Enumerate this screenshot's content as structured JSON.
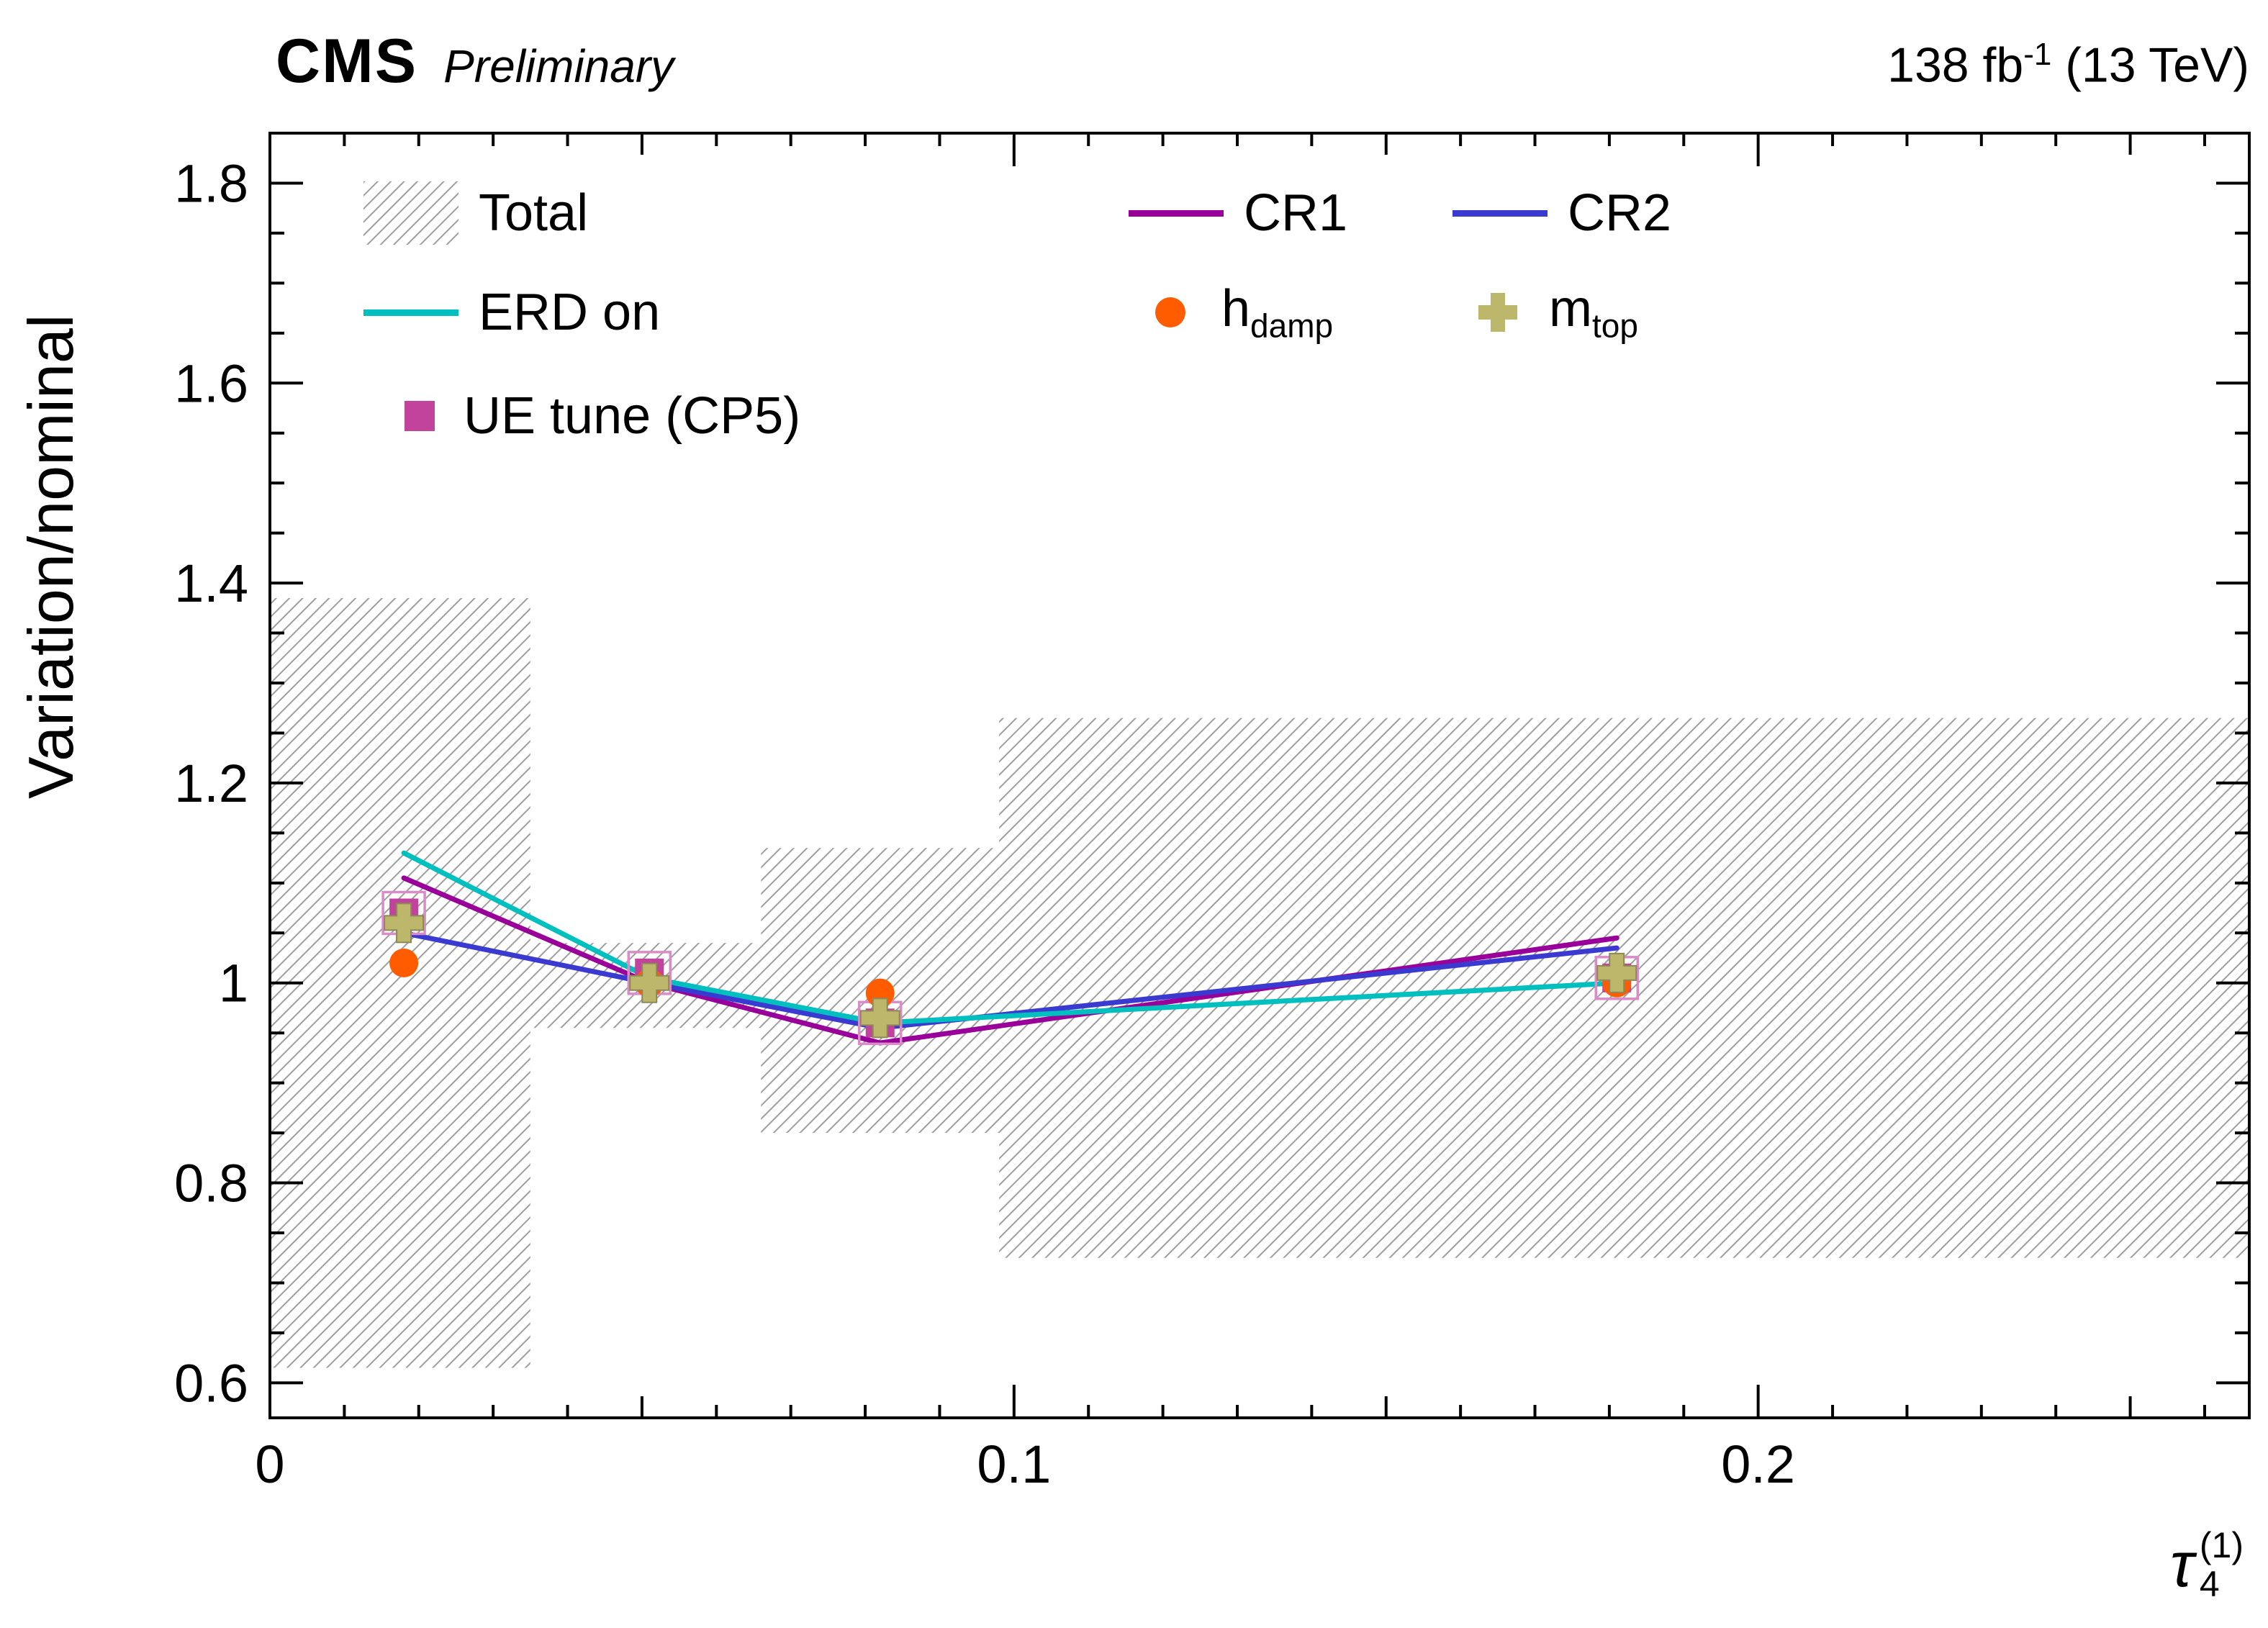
{
  "header": {
    "experiment": "CMS",
    "label": "Preliminary",
    "lumi_prefix": "138 fb",
    "lumi_sup": "-1",
    "lumi_suffix": " (13 TeV)"
  },
  "axes": {
    "y_title": "Variation/nominal",
    "x_title_main": "τ",
    "x_title_sub": "4",
    "x_title_sup": "(1)"
  },
  "legend": {
    "total": "Total",
    "cr1": "CR1",
    "cr2": "CR2",
    "erd": "ERD on",
    "hdamp_main": "h",
    "hdamp_sub": "damp",
    "mtop_main": "m",
    "mtop_sub": "top",
    "uetune": "UE tune (CP5)"
  },
  "chart_data": {
    "type": "line",
    "title": "",
    "xlabel": "tau_4^(1)",
    "ylabel": "Variation/nominal",
    "x_range": [
      0,
      0.266
    ],
    "y_range": [
      0.565,
      1.85
    ],
    "x_major_ticks": [
      0,
      0.1,
      0.2
    ],
    "x_tick_labels": [
      "0",
      "0.1",
      "0.2"
    ],
    "x_minor_step": 0.01,
    "y_major_ticks": [
      0.6,
      0.8,
      1.0,
      1.2,
      1.4,
      1.6,
      1.8
    ],
    "y_tick_labels": [
      "0.6",
      "0.8",
      "1",
      "1.2",
      "1.4",
      "1.6",
      "1.8"
    ],
    "y_minor_step": 0.05,
    "grid": false,
    "legend_position": "top-inside",
    "total_band": {
      "label": "Total",
      "color": "#9e9e9e",
      "bins": [
        {
          "x_low": 0.0,
          "x_high": 0.035,
          "y_low": 0.615,
          "y_high": 1.385
        },
        {
          "x_low": 0.035,
          "x_high": 0.066,
          "y_low": 0.955,
          "y_high": 1.04
        },
        {
          "x_low": 0.066,
          "x_high": 0.098,
          "y_low": 0.85,
          "y_high": 1.135
        },
        {
          "x_low": 0.098,
          "x_high": 0.266,
          "y_low": 0.725,
          "y_high": 1.265
        }
      ]
    },
    "x_points": [
      0.018,
      0.051,
      0.082,
      0.181
    ],
    "series": [
      {
        "name": "CR1",
        "style": "line",
        "color": "#990099",
        "values": [
          1.105,
          1.0,
          0.94,
          1.045
        ]
      },
      {
        "name": "CR2",
        "style": "line",
        "color": "#3a3ad1",
        "values": [
          1.05,
          1.0,
          0.955,
          1.035
        ]
      },
      {
        "name": "ERD on",
        "style": "line",
        "color": "#00bfbf",
        "values": [
          1.13,
          1.005,
          0.96,
          1.0
        ]
      },
      {
        "name": "hdamp",
        "style": "circle",
        "color": "#ff5c00",
        "values": [
          1.02,
          1.0,
          0.99,
          1.0
        ]
      },
      {
        "name": "mtop",
        "style": "cross",
        "color": "#bdb76b",
        "values": [
          1.06,
          1.0,
          0.965,
          1.01
        ]
      },
      {
        "name": "UE tune (CP5)",
        "style": "square",
        "color": "#c2439c",
        "outline_color": "#d98cc7",
        "values": [
          1.07,
          1.01,
          0.96,
          1.005
        ]
      }
    ]
  }
}
